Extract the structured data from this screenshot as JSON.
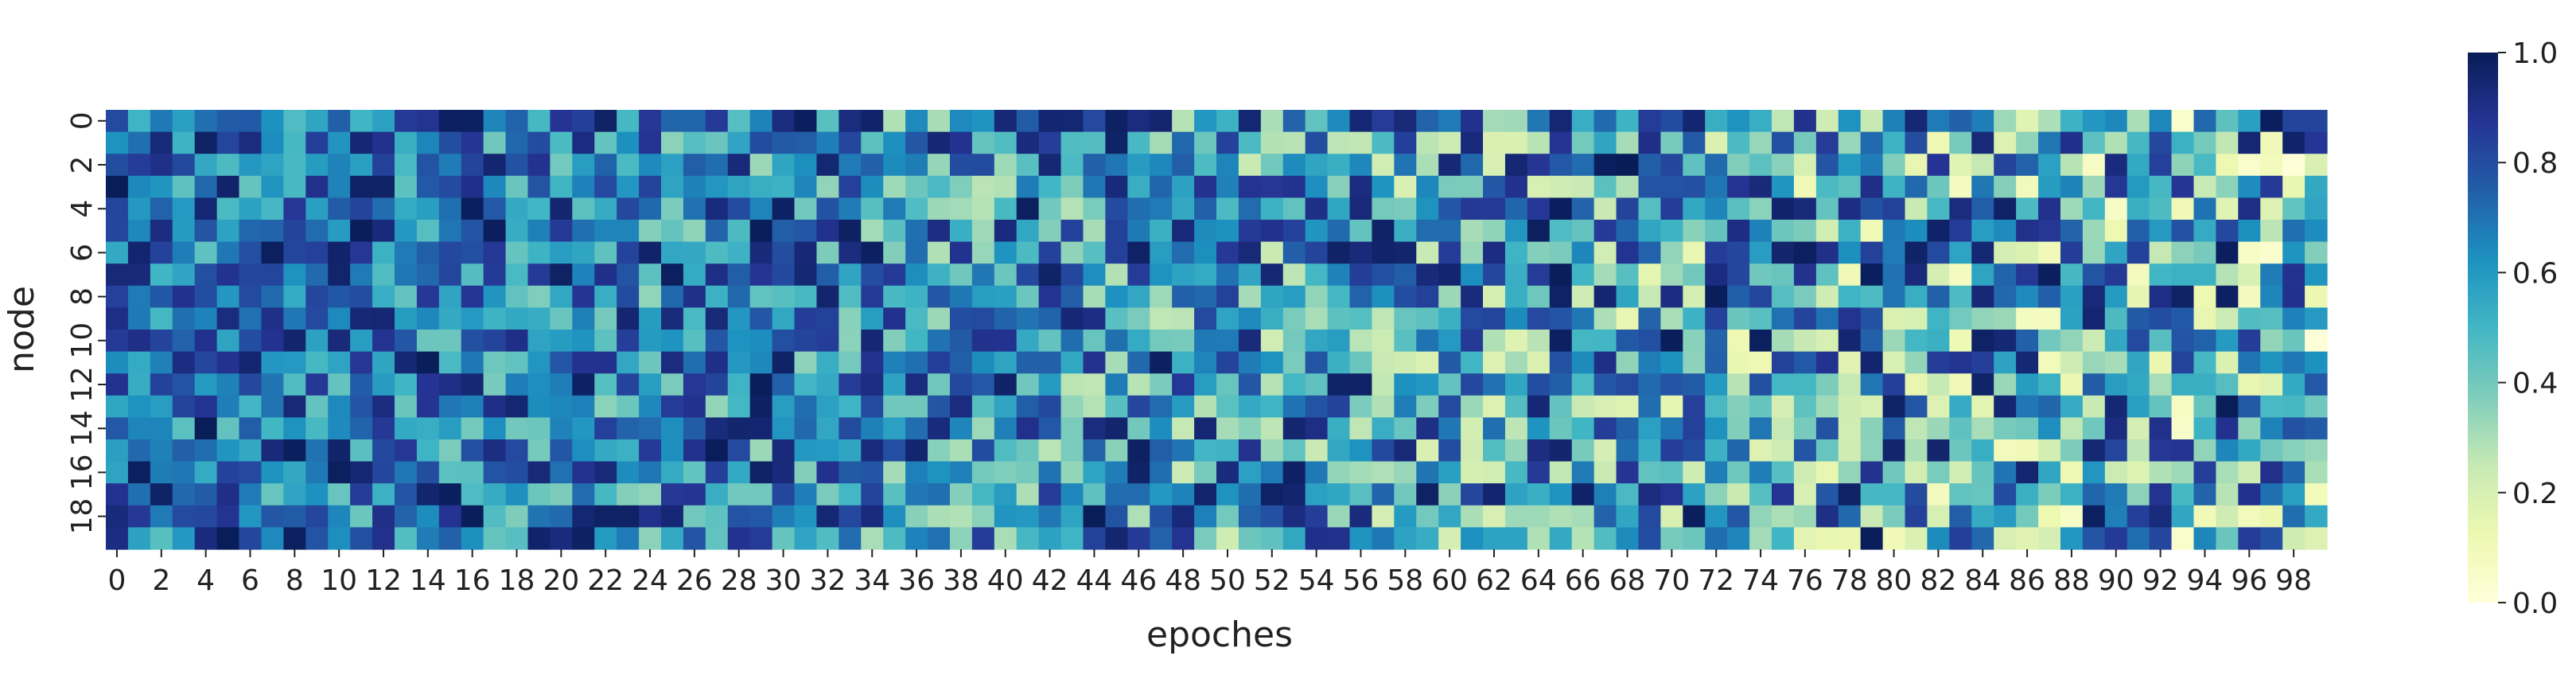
{
  "chart_data": {
    "type": "heatmap",
    "title": "",
    "xlabel": "epoches",
    "ylabel": "node",
    "rows": 20,
    "cols": 100,
    "x_tick_labels": [
      "0",
      "2",
      "4",
      "6",
      "8",
      "10",
      "12",
      "14",
      "16",
      "18",
      "20",
      "22",
      "24",
      "26",
      "28",
      "30",
      "32",
      "34",
      "36",
      "38",
      "40",
      "42",
      "44",
      "46",
      "48",
      "50",
      "52",
      "54",
      "56",
      "58",
      "60",
      "62",
      "64",
      "66",
      "68",
      "70",
      "72",
      "74",
      "76",
      "78",
      "80",
      "82",
      "84",
      "86",
      "88",
      "90",
      "92",
      "94",
      "96",
      "98"
    ],
    "y_tick_labels": [
      "0",
      "2",
      "4",
      "6",
      "8",
      "10",
      "12",
      "14",
      "16",
      "18"
    ],
    "colorbar": {
      "min": 0.0,
      "max": 1.0,
      "ticks": [
        "0.0",
        "0.2",
        "0.4",
        "0.6",
        "0.8",
        "1.0"
      ],
      "colormap": "YlGnBu",
      "stops": [
        "#ffffd9",
        "#edf8b1",
        "#c7e9b4",
        "#7fcdbb",
        "#41b6c4",
        "#1d91c0",
        "#225ea8",
        "#253494",
        "#081d58"
      ]
    },
    "trend": "values mostly in 0.5-1.0 for early epoches, spreading toward 0.0-1.0 in later epoches"
  }
}
